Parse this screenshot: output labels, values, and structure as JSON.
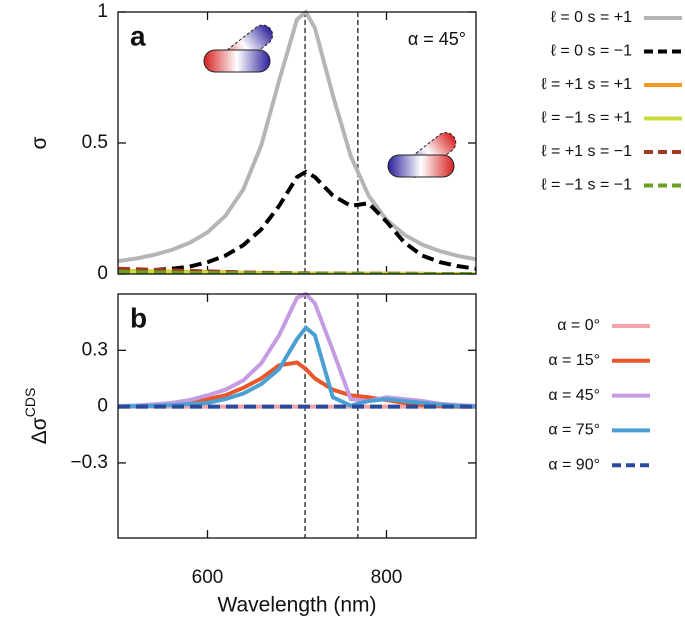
{
  "chart_data": [
    {
      "type": "line",
      "panel_label": "a",
      "annotation": "α = 45°",
      "ylabel": "σ",
      "xlim": [
        500,
        900
      ],
      "xticks": [
        600,
        800
      ],
      "ylim": [
        0,
        1
      ],
      "yticks": [
        0,
        {
          "value": 0.5,
          "label": "0.5"
        },
        1
      ],
      "vlines": [
        709,
        768
      ],
      "legend": "right",
      "x": [
        500,
        520,
        540,
        560,
        580,
        600,
        620,
        640,
        660,
        680,
        700,
        710,
        720,
        740,
        760,
        780,
        800,
        820,
        840,
        860,
        880,
        900
      ],
      "series": [
        {
          "name": "ℓ = 0 s = +1",
          "color": "#b5b5b5",
          "dashed": false,
          "values": [
            0.049,
            0.059,
            0.073,
            0.092,
            0.119,
            0.159,
            0.222,
            0.323,
            0.49,
            0.738,
            0.972,
            1,
            0.939,
            0.683,
            0.45,
            0.299,
            0.207,
            0.15,
            0.112,
            0.087,
            0.069,
            0.056
          ]
        },
        {
          "name": "ℓ = 0 s = −1",
          "color": "#000000",
          "dashed": true,
          "values": [
            0.01,
            0.012,
            0.015,
            0.02,
            0.028,
            0.045,
            0.07,
            0.11,
            0.17,
            0.26,
            0.37,
            0.39,
            0.37,
            0.3,
            0.26,
            0.27,
            0.2,
            0.12,
            0.07,
            0.045,
            0.03,
            0.02
          ]
        },
        {
          "name": "ℓ = +1 s = +1",
          "color": "#f39a1e",
          "dashed": false,
          "values": [
            0.012,
            0.011,
            0.01,
            0.009,
            0.008,
            0.007,
            0.006,
            0.005,
            0.004,
            0.003,
            0.002,
            0.002,
            0.002,
            0.001,
            0.001,
            0.001,
            0.001,
            0.001,
            0.001,
            0,
            0,
            0
          ]
        },
        {
          "name": "ℓ = −1 s = +1",
          "color": "#c9dc3a",
          "dashed": false,
          "values": [
            0.01,
            0.009,
            0.008,
            0.007,
            0.006,
            0.005,
            0.004,
            0.004,
            0.003,
            0.003,
            0.002,
            0.002,
            0.002,
            0.001,
            0.001,
            0.001,
            0.001,
            0,
            0,
            0,
            0,
            0
          ]
        },
        {
          "name": "ℓ = +1 s = −1",
          "color": "#a33a1f",
          "dashed": true,
          "values": [
            0.02,
            0.018,
            0.016,
            0.014,
            0.012,
            0.01,
            0.008,
            0.006,
            0.005,
            0.004,
            0.003,
            0.003,
            0.002,
            0.002,
            0.001,
            0.001,
            0.001,
            0.001,
            0,
            0,
            0,
            0
          ]
        },
        {
          "name": "ℓ = −1 s = −1",
          "color": "#6aa123",
          "dashed": true,
          "values": [
            0.008,
            0.007,
            0.006,
            0.005,
            0.004,
            0.004,
            0.003,
            0.003,
            0.002,
            0.002,
            0.002,
            0.001,
            0.001,
            0.001,
            0.001,
            0,
            0,
            0,
            0,
            0,
            0,
            0
          ]
        }
      ]
    },
    {
      "type": "line",
      "panel_label": "b",
      "ylabel": "Δσ",
      "ylabel_superscript": "CDS",
      "xlabel": "Wavelength (nm)",
      "xlim": [
        500,
        900
      ],
      "xticks": [
        600,
        800
      ],
      "ylim": [
        -0.7,
        0.6
      ],
      "yticks": [
        {
          "value": -0.3,
          "label": "−0.3"
        },
        0,
        0.3
      ],
      "vlines": [
        709,
        768
      ],
      "legend": "right",
      "x": [
        500,
        520,
        540,
        560,
        580,
        600,
        620,
        640,
        660,
        680,
        700,
        710,
        720,
        740,
        760,
        780,
        800,
        820,
        840,
        860,
        880,
        900
      ],
      "series": [
        {
          "name": "α = 0°",
          "color": "#f5a3a8",
          "dashed": false,
          "values": [
            0,
            0,
            0,
            0,
            0,
            0,
            0,
            0,
            0,
            0,
            0,
            0,
            0,
            0,
            0,
            0,
            0,
            0,
            0,
            0,
            0,
            0
          ]
        },
        {
          "name": "α = 15°",
          "color": "#e8562a",
          "dashed": false,
          "values": [
            0,
            0.003,
            0.008,
            0.015,
            0.025,
            0.04,
            0.06,
            0.1,
            0.15,
            0.22,
            0.235,
            0.2,
            0.15,
            0.09,
            0.06,
            0.05,
            0.035,
            0.02,
            0.008,
            0.003,
            0,
            0
          ]
        },
        {
          "name": "α = 45°",
          "color": "#c59ce2",
          "dashed": false,
          "values": [
            0.003,
            0.006,
            0.012,
            0.02,
            0.035,
            0.06,
            0.09,
            0.14,
            0.23,
            0.38,
            0.58,
            0.6,
            0.55,
            0.3,
            0.04,
            0.03,
            0.05,
            0.04,
            0.03,
            0.015,
            0.008,
            0.004
          ]
        },
        {
          "name": "α = 75°",
          "color": "#4a9fd3",
          "dashed": false,
          "values": [
            0,
            0.002,
            0.004,
            0.008,
            0.013,
            0.02,
            0.04,
            0.07,
            0.12,
            0.2,
            0.36,
            0.42,
            0.38,
            0.05,
            0.005,
            0.03,
            0.04,
            0.03,
            0.02,
            0.01,
            0.004,
            0
          ]
        },
        {
          "name": "α = 90°",
          "color": "#2a4a9b",
          "dashed": true,
          "values": [
            0,
            0,
            0,
            0,
            0,
            0,
            0,
            0,
            0,
            0,
            0,
            0,
            0,
            0,
            0,
            0,
            0,
            0,
            0,
            0,
            0,
            0
          ]
        }
      ]
    }
  ]
}
